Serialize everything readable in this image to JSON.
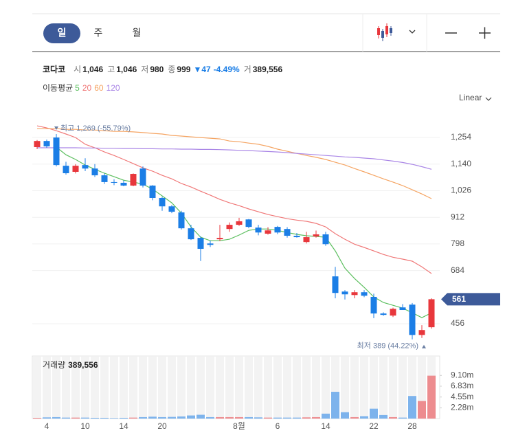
{
  "tabs": [
    "일",
    "주",
    "월"
  ],
  "selected_tab": 0,
  "quote": {
    "name": "코다코",
    "fields": [
      {
        "label": "시",
        "value": "1,046"
      },
      {
        "label": "고",
        "value": "1,046"
      },
      {
        "label": "저",
        "value": "980"
      },
      {
        "label": "종",
        "value": "999"
      }
    ],
    "change": "▼47",
    "change_pct": "-4.49%",
    "volume_label": "거",
    "volume": "389,556"
  },
  "moving_average_label": "이동평균",
  "scale_mode": "Linear",
  "chart_data": [
    {
      "type": "candlestick",
      "categories": [
        null,
        "4",
        null,
        null,
        null,
        "10",
        null,
        null,
        null,
        "14",
        null,
        null,
        null,
        "20",
        null,
        null,
        null,
        null,
        null,
        null,
        null,
        "8월",
        null,
        null,
        null,
        "6",
        null,
        null,
        null,
        null,
        "14",
        null,
        null,
        null,
        null,
        "22",
        null,
        null,
        null,
        "28",
        null,
        null
      ],
      "open": [
        1213,
        1239,
        1254,
        1133,
        1107,
        1136,
        1121,
        1092,
        1063,
        1060,
        1048,
        1121,
        1048,
        995,
        959,
        933,
        865,
        824,
        800,
        818,
        862,
        880,
        903,
        868,
        842,
        871,
        862,
        833,
        806,
        830,
        839,
        659,
        594,
        579,
        591,
        571,
        500,
        491,
        526,
        538,
        408,
        441
      ],
      "high": [
        1243,
        1245,
        1269,
        1150,
        1140,
        1165,
        1140,
        1100,
        1075,
        1070,
        1100,
        1130,
        1050,
        1000,
        965,
        940,
        880,
        830,
        812,
        880,
        890,
        910,
        905,
        880,
        870,
        875,
        870,
        845,
        850,
        855,
        850,
        700,
        600,
        600,
        600,
        585,
        505,
        525,
        540,
        545,
        450,
        565
      ],
      "low": [
        1204,
        1210,
        1130,
        1095,
        1100,
        1110,
        1085,
        1055,
        1050,
        1045,
        1045,
        1040,
        985,
        940,
        930,
        860,
        815,
        725,
        785,
        810,
        850,
        875,
        865,
        835,
        838,
        840,
        825,
        825,
        800,
        825,
        790,
        565,
        560,
        565,
        570,
        480,
        490,
        485,
        515,
        389,
        395,
        435
      ],
      "close": [
        1239,
        1216,
        1136,
        1101,
        1133,
        1121,
        1092,
        1063,
        1060,
        1048,
        1098,
        1048,
        995,
        959,
        936,
        865,
        818,
        777,
        794,
        824,
        880,
        895,
        871,
        847,
        856,
        847,
        833,
        827,
        827,
        839,
        797,
        588,
        582,
        591,
        576,
        500,
        494,
        520,
        515,
        408,
        429,
        561
      ],
      "up_color": "#e8373c",
      "down_color": "#1b7ee6",
      "series": [
        {
          "name": "5",
          "color": "#5cbf5f",
          "values": [
            null,
            null,
            1213,
            1180,
            1160,
            1136,
            1118,
            1101,
            1086,
            1071,
            1063,
            1054,
            1033,
            1004,
            974,
            930,
            871,
            827,
            812,
            812,
            818,
            836,
            856,
            862,
            862,
            856,
            847,
            839,
            833,
            830,
            827,
            768,
            694,
            650,
            612,
            571,
            547,
            535,
            523,
            503,
            482,
            503
          ]
        },
        {
          "name": "20",
          "color": "#f07878",
          "values": [
            1304,
            1295,
            1283,
            1269,
            1254,
            1225,
            1210,
            1192,
            1177,
            1160,
            1142,
            1124,
            1110,
            1092,
            1077,
            1057,
            1042,
            1024,
            1007,
            989,
            974,
            962,
            948,
            936,
            924,
            915,
            906,
            900,
            895,
            886,
            871,
            842,
            818,
            797,
            783,
            768,
            753,
            741,
            733,
            724,
            700,
            671
          ]
        },
        {
          "name": "60",
          "color": "#f5a462",
          "values": [
            1292,
            1292,
            1292,
            1289,
            1289,
            1286,
            1286,
            1283,
            1280,
            1280,
            1278,
            1275,
            1272,
            1269,
            1263,
            1260,
            1257,
            1254,
            1251,
            1248,
            1239,
            1236,
            1230,
            1225,
            1216,
            1204,
            1195,
            1186,
            1177,
            1169,
            1160,
            1148,
            1136,
            1121,
            1107,
            1092,
            1077,
            1063,
            1048,
            1030,
            1012,
            992
          ]
        },
        {
          "name": "120",
          "color": "#a985e6",
          "values": [
            1210,
            1210,
            1210,
            1210,
            1210,
            1209,
            1209,
            1208,
            1208,
            1207,
            1207,
            1206,
            1206,
            1205,
            1205,
            1204,
            1204,
            1203,
            1203,
            1202,
            1201,
            1199,
            1198,
            1196,
            1194,
            1192,
            1189,
            1186,
            1183,
            1180,
            1177,
            1174,
            1171,
            1169,
            1166,
            1163,
            1158,
            1153,
            1147,
            1139,
            1129,
            1118
          ]
        }
      ],
      "ylim": [
        356,
        1372
      ],
      "yticks": [
        456,
        684,
        798,
        912,
        {
          "value": 1026,
          "label": "1,026"
        },
        {
          "value": 1140,
          "label": "1,140"
        },
        {
          "value": 1254,
          "label": "1,254"
        }
      ],
      "grid": true,
      "high_label": "최고 1,269 (-55.79%)",
      "low_label": "최저 389 (44.22%)",
      "last_price": 561,
      "last_price_color": "#3d5a99"
    },
    {
      "type": "bar",
      "title": "거래량",
      "value_label": "389,556",
      "values": [
        150000,
        250000,
        300000,
        200000,
        200000,
        200000,
        150000,
        150000,
        100000,
        150000,
        200000,
        300000,
        400000,
        300000,
        350000,
        450000,
        650000,
        800000,
        300000,
        300000,
        300000,
        300000,
        300000,
        250000,
        200000,
        200000,
        200000,
        200000,
        250000,
        300000,
        1040000,
        5650000,
        1340000,
        300000,
        500000,
        2080000,
        740000,
        300000,
        200000,
        4760000,
        3720000,
        9050000
      ],
      "ylim": [
        0,
        13200000
      ],
      "yticks": [
        {
          "value": 2280000,
          "label": "2.28m"
        },
        {
          "value": 4550000,
          "label": "4.55m"
        },
        {
          "value": 6830000,
          "label": "6.83m"
        },
        {
          "value": 9100000,
          "label": "9.10m"
        }
      ]
    }
  ]
}
